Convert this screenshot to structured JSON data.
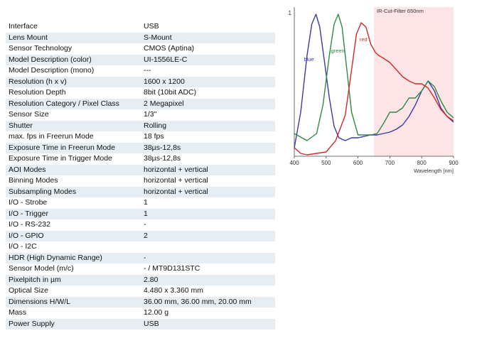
{
  "specs": [
    {
      "label": "Interface",
      "value": "USB"
    },
    {
      "label": "Lens Mount",
      "value": "S-Mount"
    },
    {
      "label": "Sensor Technology",
      "value": "CMOS (Aptina)"
    },
    {
      "label": "Model Description (color)",
      "value": "UI-1556LE-C"
    },
    {
      "label": "Model Description (mono)",
      "value": "---"
    },
    {
      "label": "Resolution (h x v)",
      "value": "1600 x 1200"
    },
    {
      "label": "Resolution Depth",
      "value": "8bit (10bit ADC)"
    },
    {
      "label": "Resolution Category / Pixel Class",
      "value": "2 Megapixel"
    },
    {
      "label": "Sensor Size",
      "value": "1/3\""
    },
    {
      "label": "Shutter",
      "value": "Rolling"
    },
    {
      "label": "max. fps in Freerun Mode",
      "value": "18 fps"
    },
    {
      "label": "Exposure Time in Freerun Mode",
      "value": "38µs-12,8s"
    },
    {
      "label": "Exposure Time in Trigger Mode",
      "value": "38µs-12,8s"
    },
    {
      "label": "AOI Modes",
      "value": "horizontal + vertical"
    },
    {
      "label": "Binning Modes",
      "value": "horizontal + vertical"
    },
    {
      "label": "Subsampling Modes",
      "value": "horizontal + vertical"
    },
    {
      "label": "I/O - Strobe",
      "value": "1"
    },
    {
      "label": "I/O - Trigger",
      "value": "1"
    },
    {
      "label": "I/O - RS-232",
      "value": "-"
    },
    {
      "label": "I/O - GPIO",
      "value": "2"
    },
    {
      "label": "I/O - I2C",
      "value": ""
    },
    {
      "label": "HDR (High Dynamic Range)",
      "value": "-"
    },
    {
      "label": "Sensor Model (m/c)",
      "value": "- / MT9D131STC"
    },
    {
      "label": "Pixelpitch in µm",
      "value": "2.80"
    },
    {
      "label": "Optical Size",
      "value": "4.480 x 3.360 mm"
    },
    {
      "label": "Dimensions H/W/L",
      "value": "36.00 mm, 36.00 mm, 20.00 mm"
    },
    {
      "label": "Mass",
      "value": "12.00 g"
    },
    {
      "label": "Power Supply",
      "value": "USB"
    }
  ],
  "chart_data": {
    "type": "line",
    "xlabel": "Wavelength [nm]",
    "ylabel": "",
    "xlim": [
      400,
      900
    ],
    "ylim": [
      0,
      1
    ],
    "xticks": [
      400,
      500,
      600,
      700,
      800,
      900
    ],
    "yticks": [
      1
    ],
    "annotations": [
      {
        "text": "IR-Cut-Filter 650nm",
        "x_from": 650,
        "x_to": 900
      }
    ],
    "grid": false,
    "series": [
      {
        "name": "blue",
        "color": "#3a3aa8",
        "x": [
          400,
          420,
          440,
          455,
          468,
          480,
          495,
          510,
          525,
          540,
          560,
          580,
          600,
          620,
          640,
          660,
          680,
          700,
          720,
          740,
          760,
          780,
          800,
          820,
          840,
          860,
          880,
          900
        ],
        "y": [
          0.05,
          0.3,
          0.7,
          0.92,
          0.99,
          0.9,
          0.65,
          0.4,
          0.2,
          0.12,
          0.1,
          0.12,
          0.12,
          0.13,
          0.14,
          0.14,
          0.15,
          0.16,
          0.18,
          0.21,
          0.27,
          0.35,
          0.45,
          0.52,
          0.45,
          0.33,
          0.27,
          0.23
        ]
      },
      {
        "name": "green",
        "color": "#2f8a46",
        "x": [
          400,
          440,
          470,
          490,
          510,
          525,
          538,
          550,
          565,
          580,
          600,
          620,
          640,
          660,
          680,
          700,
          720,
          740,
          760,
          780,
          800,
          820,
          840,
          860,
          880,
          900
        ],
        "y": [
          0.15,
          0.1,
          0.15,
          0.35,
          0.7,
          0.92,
          0.99,
          0.9,
          0.6,
          0.3,
          0.14,
          0.14,
          0.14,
          0.15,
          0.22,
          0.3,
          0.3,
          0.33,
          0.4,
          0.4,
          0.45,
          0.52,
          0.48,
          0.38,
          0.3,
          0.26
        ]
      },
      {
        "name": "red",
        "color": "#d02a2a",
        "x": [
          400,
          420,
          440,
          470,
          500,
          530,
          560,
          580,
          595,
          610,
          625,
          640,
          655,
          665,
          680,
          700,
          720,
          740,
          760,
          780,
          800,
          820,
          840,
          860,
          880,
          900
        ],
        "y": [
          0.05,
          0.01,
          0.0,
          0.01,
          0.02,
          0.1,
          0.28,
          0.6,
          0.85,
          0.93,
          0.9,
          0.78,
          0.72,
          0.7,
          0.68,
          0.65,
          0.6,
          0.55,
          0.52,
          0.5,
          0.5,
          0.47,
          0.4,
          0.32,
          0.27,
          0.24
        ]
      }
    ],
    "series_labels": [
      {
        "text": "blue",
        "color": "#3a3aa8",
        "x": 430,
        "y": 0.66
      },
      {
        "text": "green",
        "color": "#2f8a46",
        "x": 515,
        "y": 0.72
      },
      {
        "text": "red",
        "color": "#d02a2a",
        "x": 605,
        "y": 0.8
      }
    ],
    "ir_region": {
      "from": 650,
      "to": 900,
      "color": "#fde4e6"
    }
  }
}
